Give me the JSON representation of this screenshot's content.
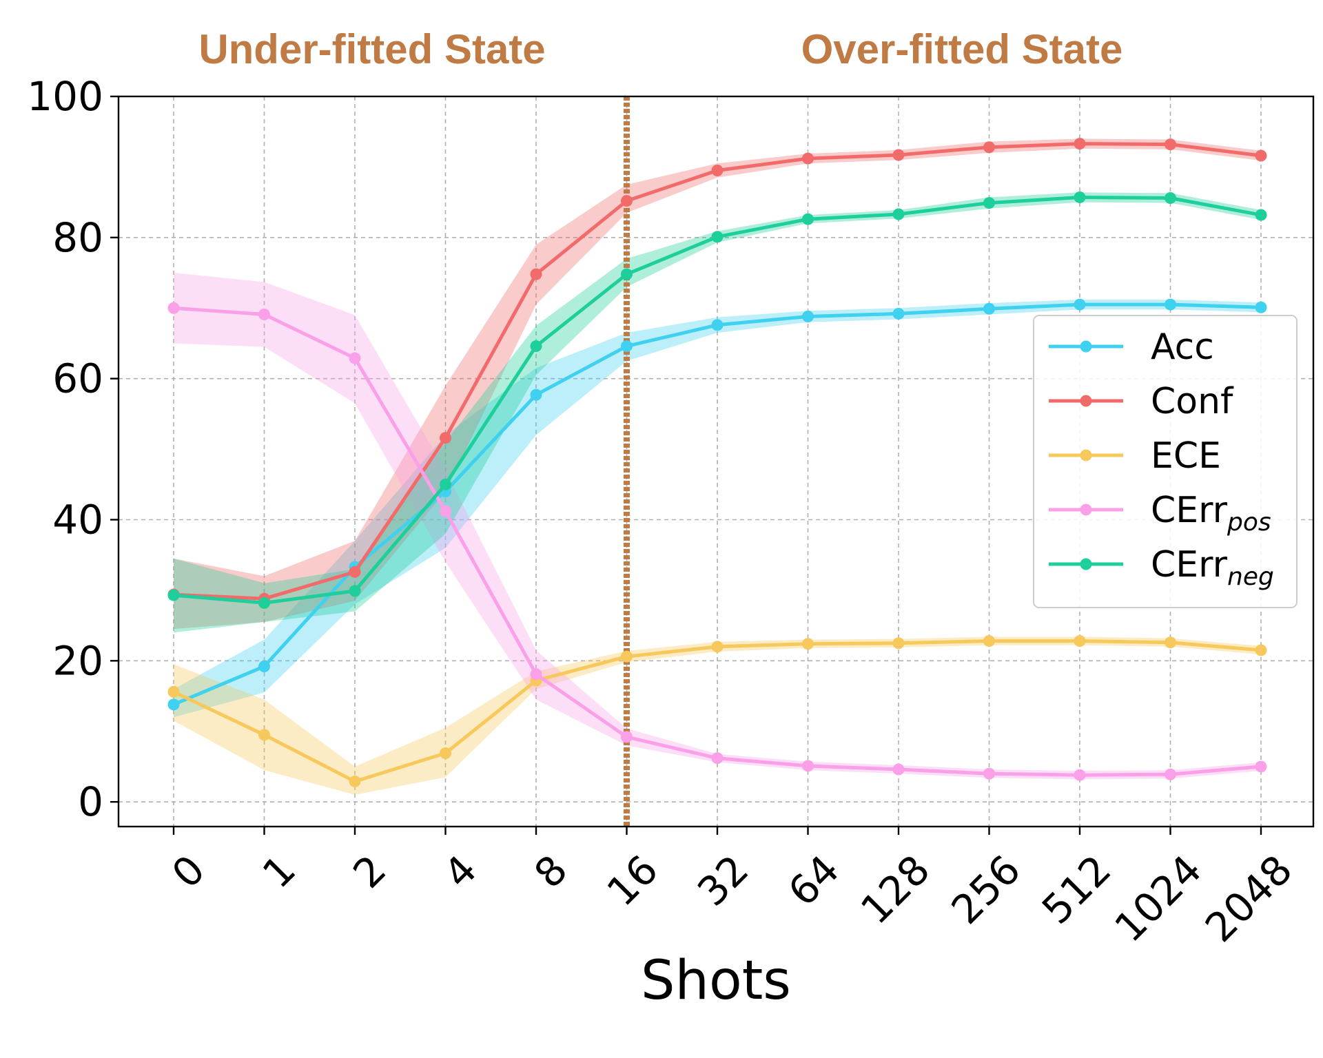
{
  "chart_data": {
    "type": "line",
    "title": "",
    "xlabel": "Shots",
    "ylabel": "",
    "ylim": [
      -3.5,
      100
    ],
    "grid": true,
    "legend_position": "right",
    "categories": [
      "0",
      "1",
      "2",
      "4",
      "8",
      "16",
      "32",
      "64",
      "128",
      "256",
      "512",
      "1024",
      "2048"
    ],
    "y_ticks": [
      "0",
      "20",
      "40",
      "60",
      "80",
      "100"
    ],
    "divider_after_category": "16",
    "regions": {
      "left": "Under-fitted State",
      "right": "Over-fitted State",
      "color": "#c07a44"
    },
    "series": [
      {
        "name": "Acc",
        "color": "#40d0f0",
        "values": [
          13.8,
          19.2,
          33.3,
          44.0,
          57.7,
          64.6,
          67.6,
          68.8,
          69.2,
          69.9,
          70.5,
          70.5,
          70.1
        ],
        "band": [
          [
            12.0,
            16.0
          ],
          [
            15.5,
            23.0
          ],
          [
            28.0,
            37.0
          ],
          [
            36.0,
            52.0
          ],
          [
            52.0,
            61.5
          ],
          [
            62.5,
            66.5
          ],
          [
            66.5,
            68.7
          ],
          [
            68.0,
            69.6
          ],
          [
            68.4,
            70.0
          ],
          [
            69.1,
            70.7
          ],
          [
            69.8,
            71.2
          ],
          [
            69.8,
            71.2
          ],
          [
            69.4,
            70.8
          ]
        ]
      },
      {
        "name": "Conf",
        "color": "#f26b6b",
        "values": [
          29.4,
          28.8,
          32.6,
          51.6,
          74.8,
          85.2,
          89.5,
          91.2,
          91.7,
          92.8,
          93.3,
          93.2,
          91.6
        ],
        "band": [
          [
            24.5,
            34.5
          ],
          [
            25.5,
            32.0
          ],
          [
            28.5,
            37.0
          ],
          [
            44.0,
            59.0
          ],
          [
            70.5,
            79.0
          ],
          [
            83.5,
            87.5
          ],
          [
            88.5,
            90.5
          ],
          [
            90.5,
            91.9
          ],
          [
            91.0,
            92.4
          ],
          [
            92.0,
            93.6
          ],
          [
            92.6,
            94.0
          ],
          [
            92.5,
            93.9
          ],
          [
            90.9,
            92.3
          ]
        ]
      },
      {
        "name": "ECE",
        "color": "#f7c95c",
        "values": [
          15.6,
          9.5,
          2.9,
          6.9,
          17.2,
          20.6,
          22.0,
          22.4,
          22.5,
          22.8,
          22.8,
          22.6,
          21.5
        ],
        "band": [
          [
            11.5,
            19.5
          ],
          [
            4.5,
            14.5
          ],
          [
            1.0,
            5.0
          ],
          [
            3.5,
            10.5
          ],
          [
            16.0,
            18.5
          ],
          [
            19.8,
            21.4
          ],
          [
            21.3,
            22.7
          ],
          [
            21.8,
            23.0
          ],
          [
            21.9,
            23.1
          ],
          [
            22.2,
            23.4
          ],
          [
            22.2,
            23.4
          ],
          [
            22.0,
            23.2
          ],
          [
            20.9,
            22.1
          ]
        ]
      },
      {
        "name": "CErr",
        "sub": "pos",
        "color": "#f9a0e8",
        "values": [
          70.0,
          69.1,
          62.9,
          41.2,
          18.1,
          9.2,
          6.2,
          5.1,
          4.6,
          4.0,
          3.8,
          3.9,
          5.0
        ],
        "band": [
          [
            65.0,
            75.0
          ],
          [
            64.5,
            73.7
          ],
          [
            56.5,
            69.0
          ],
          [
            34.0,
            47.0
          ],
          [
            14.5,
            21.5
          ],
          [
            8.0,
            10.4
          ],
          [
            5.6,
            6.8
          ],
          [
            4.5,
            5.7
          ],
          [
            4.0,
            5.2
          ],
          [
            3.4,
            4.6
          ],
          [
            3.2,
            4.4
          ],
          [
            3.3,
            4.5
          ],
          [
            4.4,
            5.6
          ]
        ]
      },
      {
        "name": "CErr",
        "sub": "neg",
        "color": "#1ecf9b",
        "values": [
          29.3,
          28.2,
          29.9,
          45.0,
          64.6,
          74.8,
          80.1,
          82.6,
          83.3,
          84.9,
          85.7,
          85.6,
          83.2
        ],
        "band": [
          [
            24.0,
            34.5
          ],
          [
            25.5,
            31.0
          ],
          [
            27.0,
            33.0
          ],
          [
            38.0,
            51.0
          ],
          [
            60.5,
            67.5
          ],
          [
            73.0,
            77.0
          ],
          [
            79.3,
            80.9
          ],
          [
            82.0,
            83.2
          ],
          [
            82.7,
            83.9
          ],
          [
            84.1,
            85.7
          ],
          [
            85.0,
            86.4
          ],
          [
            84.9,
            86.3
          ],
          [
            82.5,
            83.9
          ]
        ]
      }
    ]
  }
}
